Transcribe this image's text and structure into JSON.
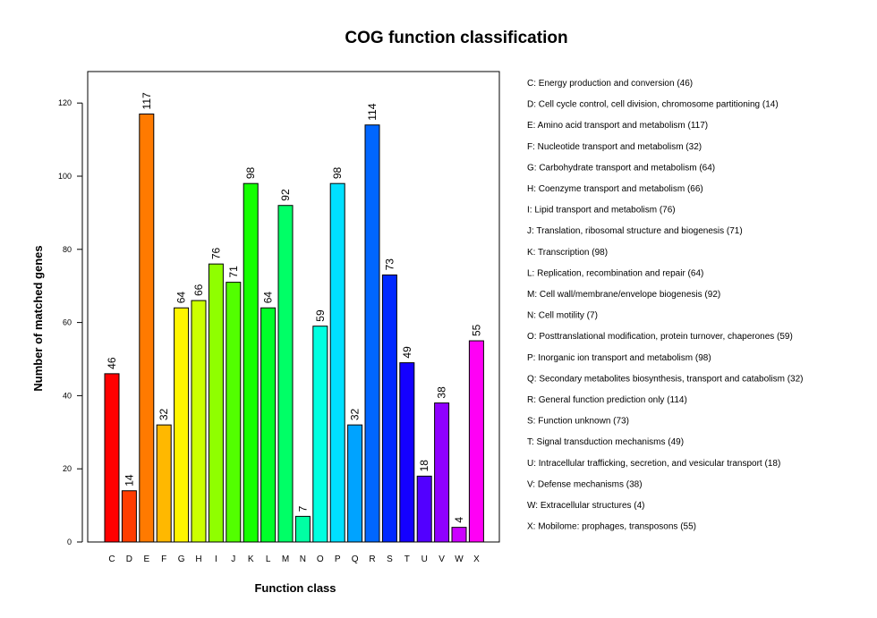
{
  "chart_data": {
    "type": "bar",
    "title": "COG function classification",
    "xlabel": "Function class",
    "ylabel": "Number of matched genes",
    "ylim": [
      0,
      128
    ],
    "yticks": [
      0,
      20,
      40,
      60,
      80,
      100,
      120
    ],
    "grid": false,
    "legend_position": "right",
    "categories": [
      "C",
      "D",
      "E",
      "F",
      "G",
      "H",
      "I",
      "J",
      "K",
      "L",
      "M",
      "N",
      "O",
      "P",
      "Q",
      "R",
      "S",
      "T",
      "U",
      "V",
      "W",
      "X"
    ],
    "values": [
      46,
      14,
      117,
      32,
      64,
      66,
      76,
      71,
      98,
      64,
      92,
      7,
      59,
      98,
      32,
      114,
      73,
      49,
      18,
      38,
      4,
      55
    ],
    "colors": [
      "#FF0000",
      "#FF3D00",
      "#FF7A00",
      "#FFB800",
      "#FFF500",
      "#CCFF00",
      "#8FFF00",
      "#52FF00",
      "#14FF00",
      "#00FF29",
      "#00FF66",
      "#00FFA3",
      "#00FFE0",
      "#00E0FF",
      "#00A3FF",
      "#0066FF",
      "#0029FF",
      "#1400FF",
      "#5200FF",
      "#8F00FF",
      "#CC00FF",
      "#FF00F5"
    ],
    "legend_entries": [
      "C: Energy production and conversion   (46)",
      "D: Cell cycle control, cell division, chromosome partitioning   (14)",
      "E: Amino acid transport and metabolism   (117)",
      "F: Nucleotide transport and metabolism   (32)",
      "G: Carbohydrate transport and metabolism   (64)",
      "H: Coenzyme transport and metabolism   (66)",
      "I: Lipid transport and metabolism   (76)",
      "J: Translation, ribosomal structure and biogenesis   (71)",
      "K: Transcription   (98)",
      "L: Replication, recombination and repair   (64)",
      "M: Cell wall/membrane/envelope biogenesis   (92)",
      "N: Cell motility   (7)",
      "O: Posttranslational modification, protein turnover, chaperones   (59)",
      "P: Inorganic ion transport and metabolism   (98)",
      "Q: Secondary metabolites biosynthesis, transport and catabolism   (32)",
      "R: General function prediction only   (114)",
      "S: Function unknown   (73)",
      "T: Signal transduction mechanisms   (49)",
      "U: Intracellular trafficking, secretion, and vesicular transport   (18)",
      "V: Defense mechanisms   (38)",
      "W: Extracellular structures   (4)",
      "X: Mobilome: prophages, transposons   (55)"
    ]
  }
}
